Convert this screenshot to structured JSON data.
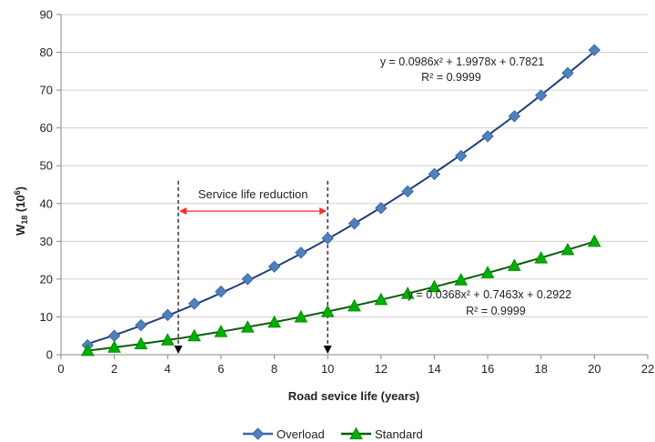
{
  "chart_data": {
    "type": "scatter",
    "title": "",
    "xlabel": "Road sevice life (years)",
    "ylabel": "W",
    "ylabel_sub": "18",
    "ylabel_suffix": " (10",
    "ylabel_sup": "6",
    "ylabel_close": ")",
    "xlim": [
      0,
      22
    ],
    "ylim": [
      0,
      90
    ],
    "xticks": [
      "0",
      "2",
      "4",
      "6",
      "8",
      "10",
      "12",
      "14",
      "16",
      "18",
      "20",
      "22"
    ],
    "yticks": [
      "0",
      "10",
      "20",
      "30",
      "40",
      "50",
      "60",
      "70",
      "80",
      "90"
    ],
    "grid": "horizontal",
    "legend_position": "bottom",
    "series": [
      {
        "name": "Overload",
        "color": "#4f81bd",
        "line_color": "#1f3f7a",
        "marker": "diamond-icon",
        "x": [
          1,
          2,
          3,
          4,
          5,
          6,
          7,
          8,
          9,
          10,
          11,
          12,
          13,
          14,
          15,
          16,
          17,
          18,
          19,
          20
        ],
        "y": [
          2.5,
          5.0,
          7.8,
          10.5,
          13.5,
          16.7,
          20.0,
          23.3,
          27.0,
          30.8,
          34.7,
          38.8,
          43.2,
          47.8,
          52.6,
          57.8,
          63.1,
          68.6,
          74.5,
          80.6
        ],
        "trend": {
          "a": 0.0986,
          "b": 1.9978,
          "c": 0.7821
        },
        "equation": "y = 0.0986x² + 1.9978x + 0.7821",
        "r2": "R² = 0.9999"
      },
      {
        "name": "Standard",
        "color": "#00b000",
        "line_color": "#0a5c0a",
        "marker": "triangle-icon",
        "x": [
          1,
          2,
          3,
          4,
          5,
          6,
          7,
          8,
          9,
          10,
          11,
          12,
          13,
          14,
          15,
          16,
          17,
          18,
          19,
          20
        ],
        "y": [
          1.1,
          2.0,
          2.9,
          3.9,
          5.0,
          6.1,
          7.3,
          8.6,
          10.0,
          11.4,
          12.9,
          14.6,
          16.2,
          18.0,
          19.8,
          21.7,
          23.6,
          25.6,
          27.8,
          30.0
        ],
        "trend": {
          "a": 0.0368,
          "b": 0.7463,
          "c": 0.2922
        },
        "equation": "y = 0.0368x² + 0.7463x + 0.2922",
        "r2": "R² = 0.9999"
      }
    ],
    "annotation": {
      "text": "Service life reduction",
      "x_start": 4.4,
      "x_end": 10,
      "y_level": 38,
      "y_top": 46,
      "arrow_color": "#ff2a2a"
    }
  }
}
